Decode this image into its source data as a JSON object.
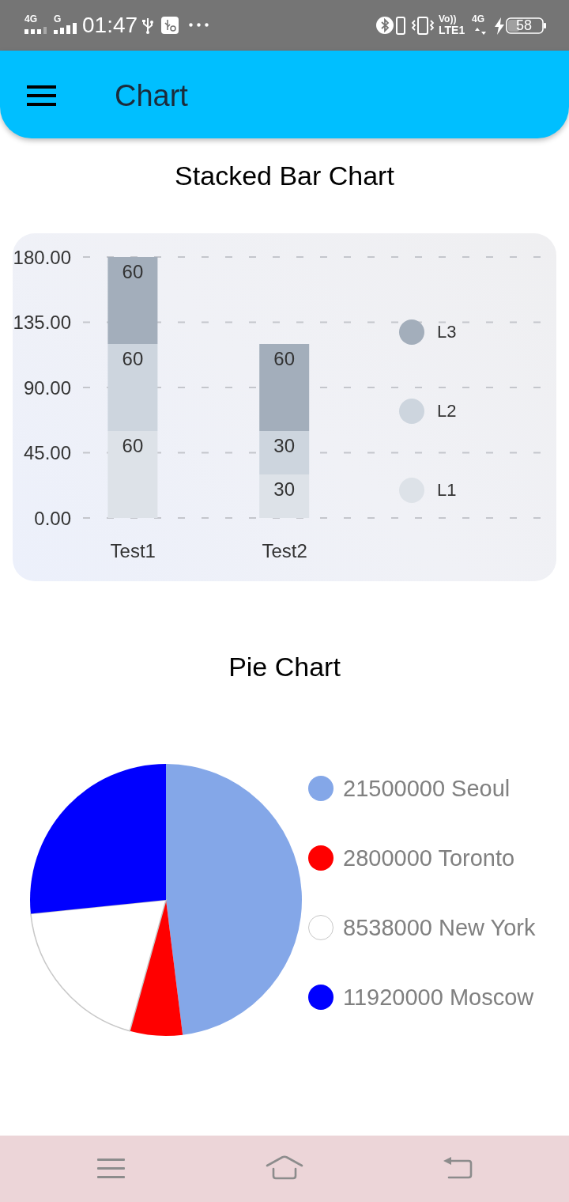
{
  "chart_data": [
    {
      "type": "bar",
      "title": "Stacked Bar Chart",
      "annotations": [
        "Chart",
        "01:47",
        "58",
        "4G",
        "G",
        "Vo))",
        "LTE1",
        "4G"
      ],
      "categories": [
        "Test1",
        "Test2"
      ],
      "series": [
        {
          "name": "L1",
          "color": "#dde2e8",
          "values": [
            60,
            30
          ]
        },
        {
          "name": "L2",
          "color": "#cdd5de",
          "values": [
            60,
            30
          ]
        },
        {
          "name": "L3",
          "color": "#a3aebb",
          "values": [
            60,
            60
          ]
        }
      ],
      "stacked": true,
      "ylim": [
        0,
        180
      ],
      "yticks": [
        {
          "value": 0,
          "label": "0.00"
        },
        {
          "value": 45,
          "label": "45.00"
        },
        {
          "value": 90,
          "label": "90.00"
        },
        {
          "value": 135,
          "label": "135.00"
        },
        {
          "value": 180,
          "label": "180.00"
        }
      ],
      "grid": "y",
      "legend": "right",
      "data_labels": true
    },
    {
      "type": "pie",
      "title": "Pie Chart",
      "categories": [
        "21500000 Seoul",
        "2800000 Toronto",
        "8538000 New York",
        "11920000 Moscow"
      ],
      "values": [
        21500000,
        2800000,
        8538000,
        11920000
      ],
      "colors": [
        "#84a7e8",
        "#ff0000",
        "#ffffff",
        "#0000ff"
      ],
      "legend": "right"
    }
  ]
}
